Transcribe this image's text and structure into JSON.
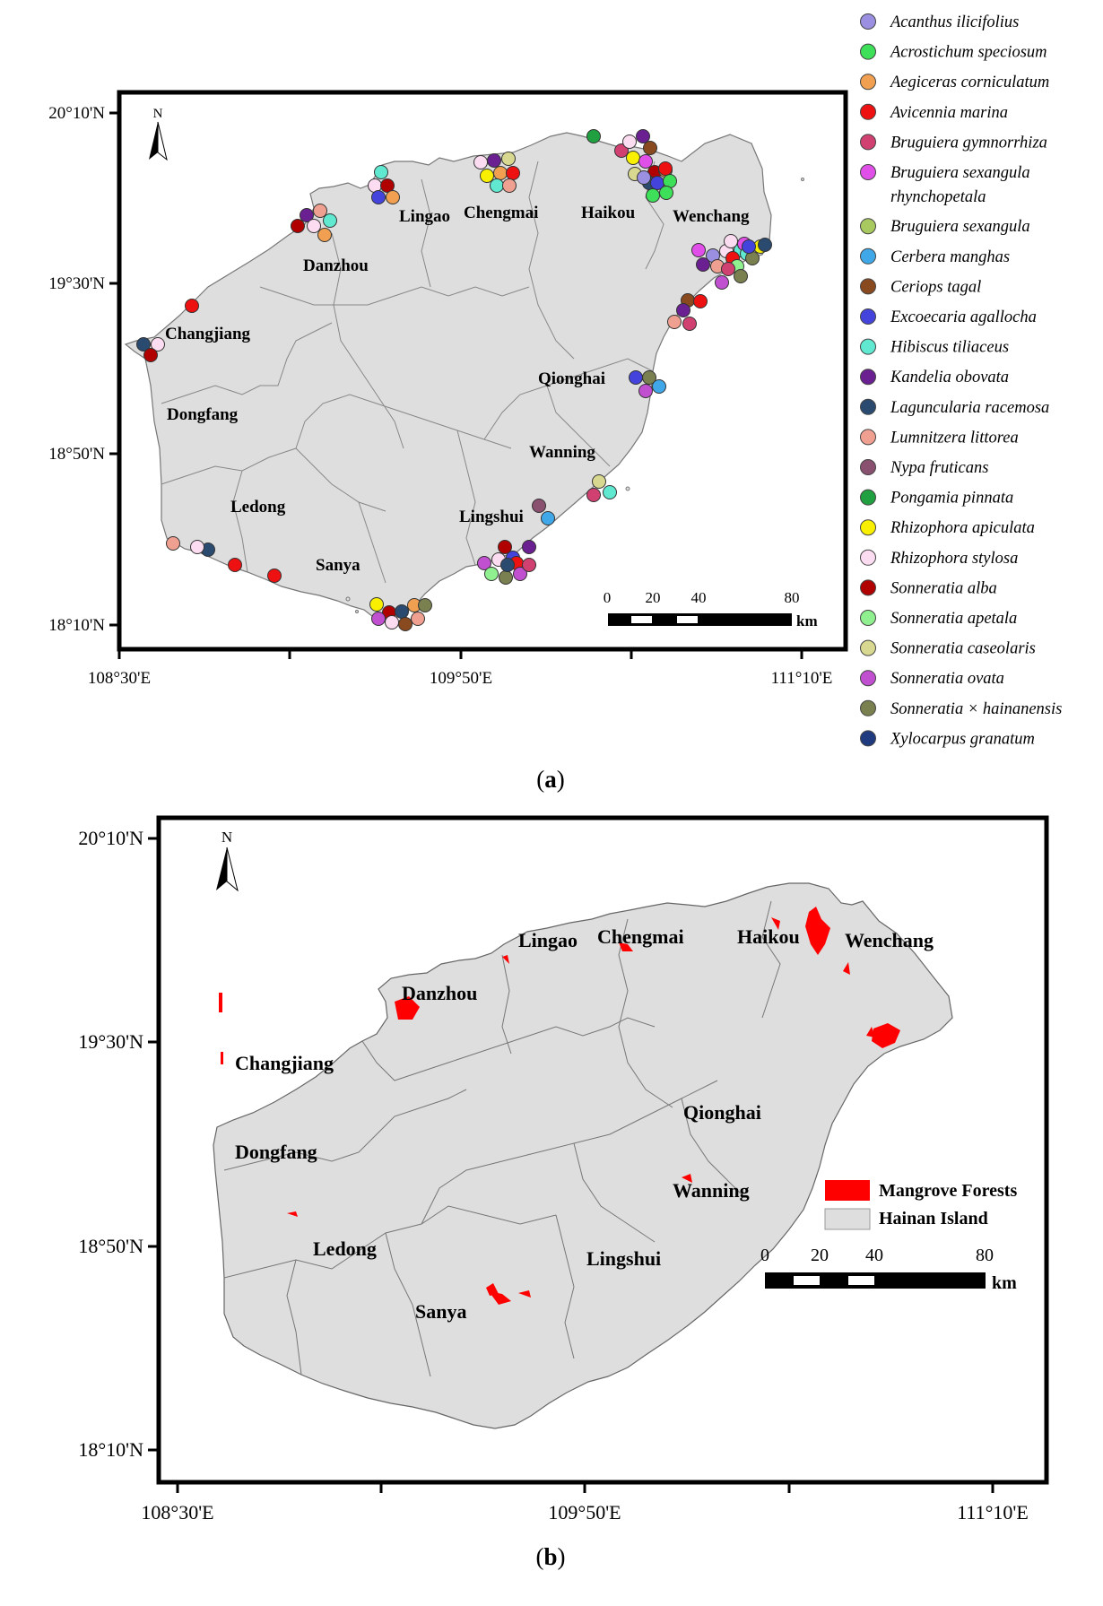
{
  "panel_a": {
    "caption_letter": "a",
    "north_label": "N",
    "lat_labels": [
      "20°10'N",
      "19°30'N",
      "18°50'N",
      "18°10'N"
    ],
    "lon_labels": [
      "108°30'E",
      "109°50'E",
      "111°10'E"
    ],
    "region_labels": [
      "Lingao",
      "Chengmai",
      "Haikou",
      "Wenchang",
      "Danzhou",
      "Changjiang",
      "Qionghai",
      "Dongfang",
      "Wanning",
      "Ledong",
      "Lingshui",
      "Sanya"
    ],
    "scale": {
      "ticks": [
        "0",
        "20",
        "40",
        "80"
      ],
      "unit": "km"
    },
    "legend": [
      {
        "name": "Acanthus ilicifolius",
        "color": "#9a8fe0"
      },
      {
        "name": "Acrostichum speciosum",
        "color": "#3ee05a"
      },
      {
        "name": "Aegiceras corniculatum",
        "color": "#f0a050"
      },
      {
        "name": "Avicennia marina",
        "color": "#ee1111"
      },
      {
        "name": "Bruguiera gymnorrhiza",
        "color": "#d04070"
      },
      {
        "name": "Bruguiera sexangula",
        "name_line2": "rhynchopetala",
        "color": "#e050e8"
      },
      {
        "name": "Bruguiera sexangula",
        "color": "#a8c860"
      },
      {
        "name": "Cerbera manghas",
        "color": "#40a8e8"
      },
      {
        "name": "Ceriops tagal",
        "color": "#8a4a20"
      },
      {
        "name": "Excoecaria agallocha",
        "color": "#4444dd"
      },
      {
        "name": "Hibiscus tiliaceus",
        "color": "#60e8d0"
      },
      {
        "name": "Kandelia obovata",
        "color": "#6a2090"
      },
      {
        "name": "Laguncularia racemosa",
        "color": "#2a4a70"
      },
      {
        "name": "Lumnitzera littorea",
        "color": "#f0a090"
      },
      {
        "name": "Nypa fruticans",
        "color": "#8a5070"
      },
      {
        "name": "Pongamia pinnata",
        "color": "#20a040"
      },
      {
        "name": "Rhizophora apiculata",
        "color": "#f8f000"
      },
      {
        "name": "Rhizophora stylosa",
        "color": "#fcdcf0"
      },
      {
        "name": "Sonneratia alba",
        "color": "#b00000"
      },
      {
        "name": "Sonneratia apetala",
        "color": "#90f090"
      },
      {
        "name": "Sonneratia caseolaris",
        "color": "#d8d890"
      },
      {
        "name": "Sonneratia ovata",
        "color": "#c050d0"
      },
      {
        "name": "Sonneratia × hainanensis",
        "color": "#7a8050"
      },
      {
        "name": "Xylocarpus granatum",
        "color": "#203a80"
      }
    ]
  },
  "panel_b": {
    "caption_letter": "b",
    "north_label": "N",
    "lat_labels": [
      "20°10'N",
      "19°30'N",
      "18°50'N",
      "18°10'N"
    ],
    "lon_labels": [
      "108°30'E",
      "109°50'E",
      "111°10'E"
    ],
    "region_labels": [
      "Lingao",
      "Chengmai",
      "Haikou",
      "Wenchang",
      "Danzhou",
      "Changjiang",
      "Qionghai",
      "Dongfang",
      "Wanning",
      "Ledong",
      "Lingshui",
      "Sanya"
    ],
    "scale": {
      "ticks": [
        "0",
        "20",
        "40",
        "80"
      ],
      "unit": "km"
    },
    "legend": [
      {
        "name": "Mangrove Forests",
        "color": "#ff0000"
      },
      {
        "name": "Hainan Island",
        "color": "#dedede"
      }
    ]
  }
}
